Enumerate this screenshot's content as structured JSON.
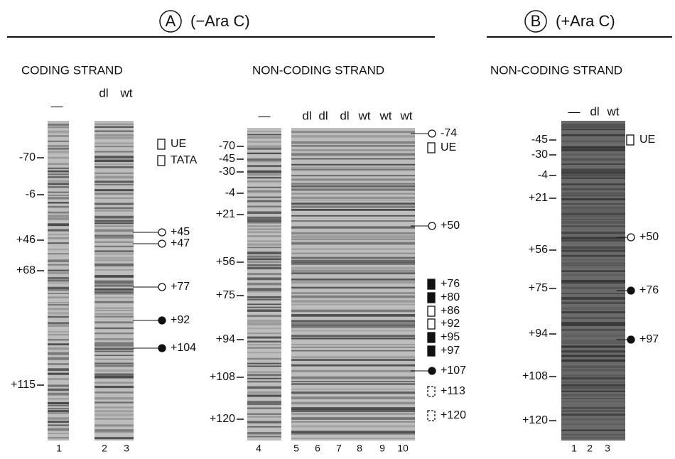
{
  "panels": [
    {
      "letter": "A",
      "title": "(−Ara C)"
    },
    {
      "letter": "B",
      "title": "(+Ara C)"
    }
  ],
  "sections": [
    {
      "heading": "CODING STRAND",
      "lane_headers": [
        "—",
        "dl",
        "wt"
      ],
      "lane_numbers": [
        "1",
        "2",
        "3"
      ],
      "left_labels": [
        "-70",
        "-6",
        "+46",
        "+68",
        "+115"
      ],
      "right_labels": [
        "UE",
        "TATA",
        "+45",
        "+47",
        "+77",
        "+92",
        "+104"
      ]
    },
    {
      "heading": "NON-CODING STRAND",
      "lane_headers": [
        "—",
        "dl",
        "dl",
        "dl",
        "wt",
        "wt",
        "wt"
      ],
      "lane_numbers": [
        "4",
        "5",
        "6",
        "7",
        "8",
        "9",
        "10"
      ],
      "left_labels": [
        "-70",
        "-45",
        "-30",
        "-4",
        "+21",
        "+56",
        "+75",
        "+94",
        "+108",
        "+120"
      ],
      "right_labels": [
        "-74",
        "UE",
        "+50",
        "+76",
        "+80",
        "+86",
        "+92",
        "+95",
        "+97",
        "+107",
        "+113",
        "+120"
      ]
    },
    {
      "heading": "NON-CODING STRAND",
      "lane_headers": [
        "—",
        "dl",
        "wt"
      ],
      "lane_numbers": [
        "1",
        "2",
        "3"
      ],
      "left_labels": [
        "-45",
        "-30",
        "-4",
        "+21",
        "+56",
        "+75",
        "+94",
        "+108",
        "+120"
      ],
      "right_labels": [
        "UE",
        "+50",
        "+76",
        "+97"
      ]
    }
  ]
}
